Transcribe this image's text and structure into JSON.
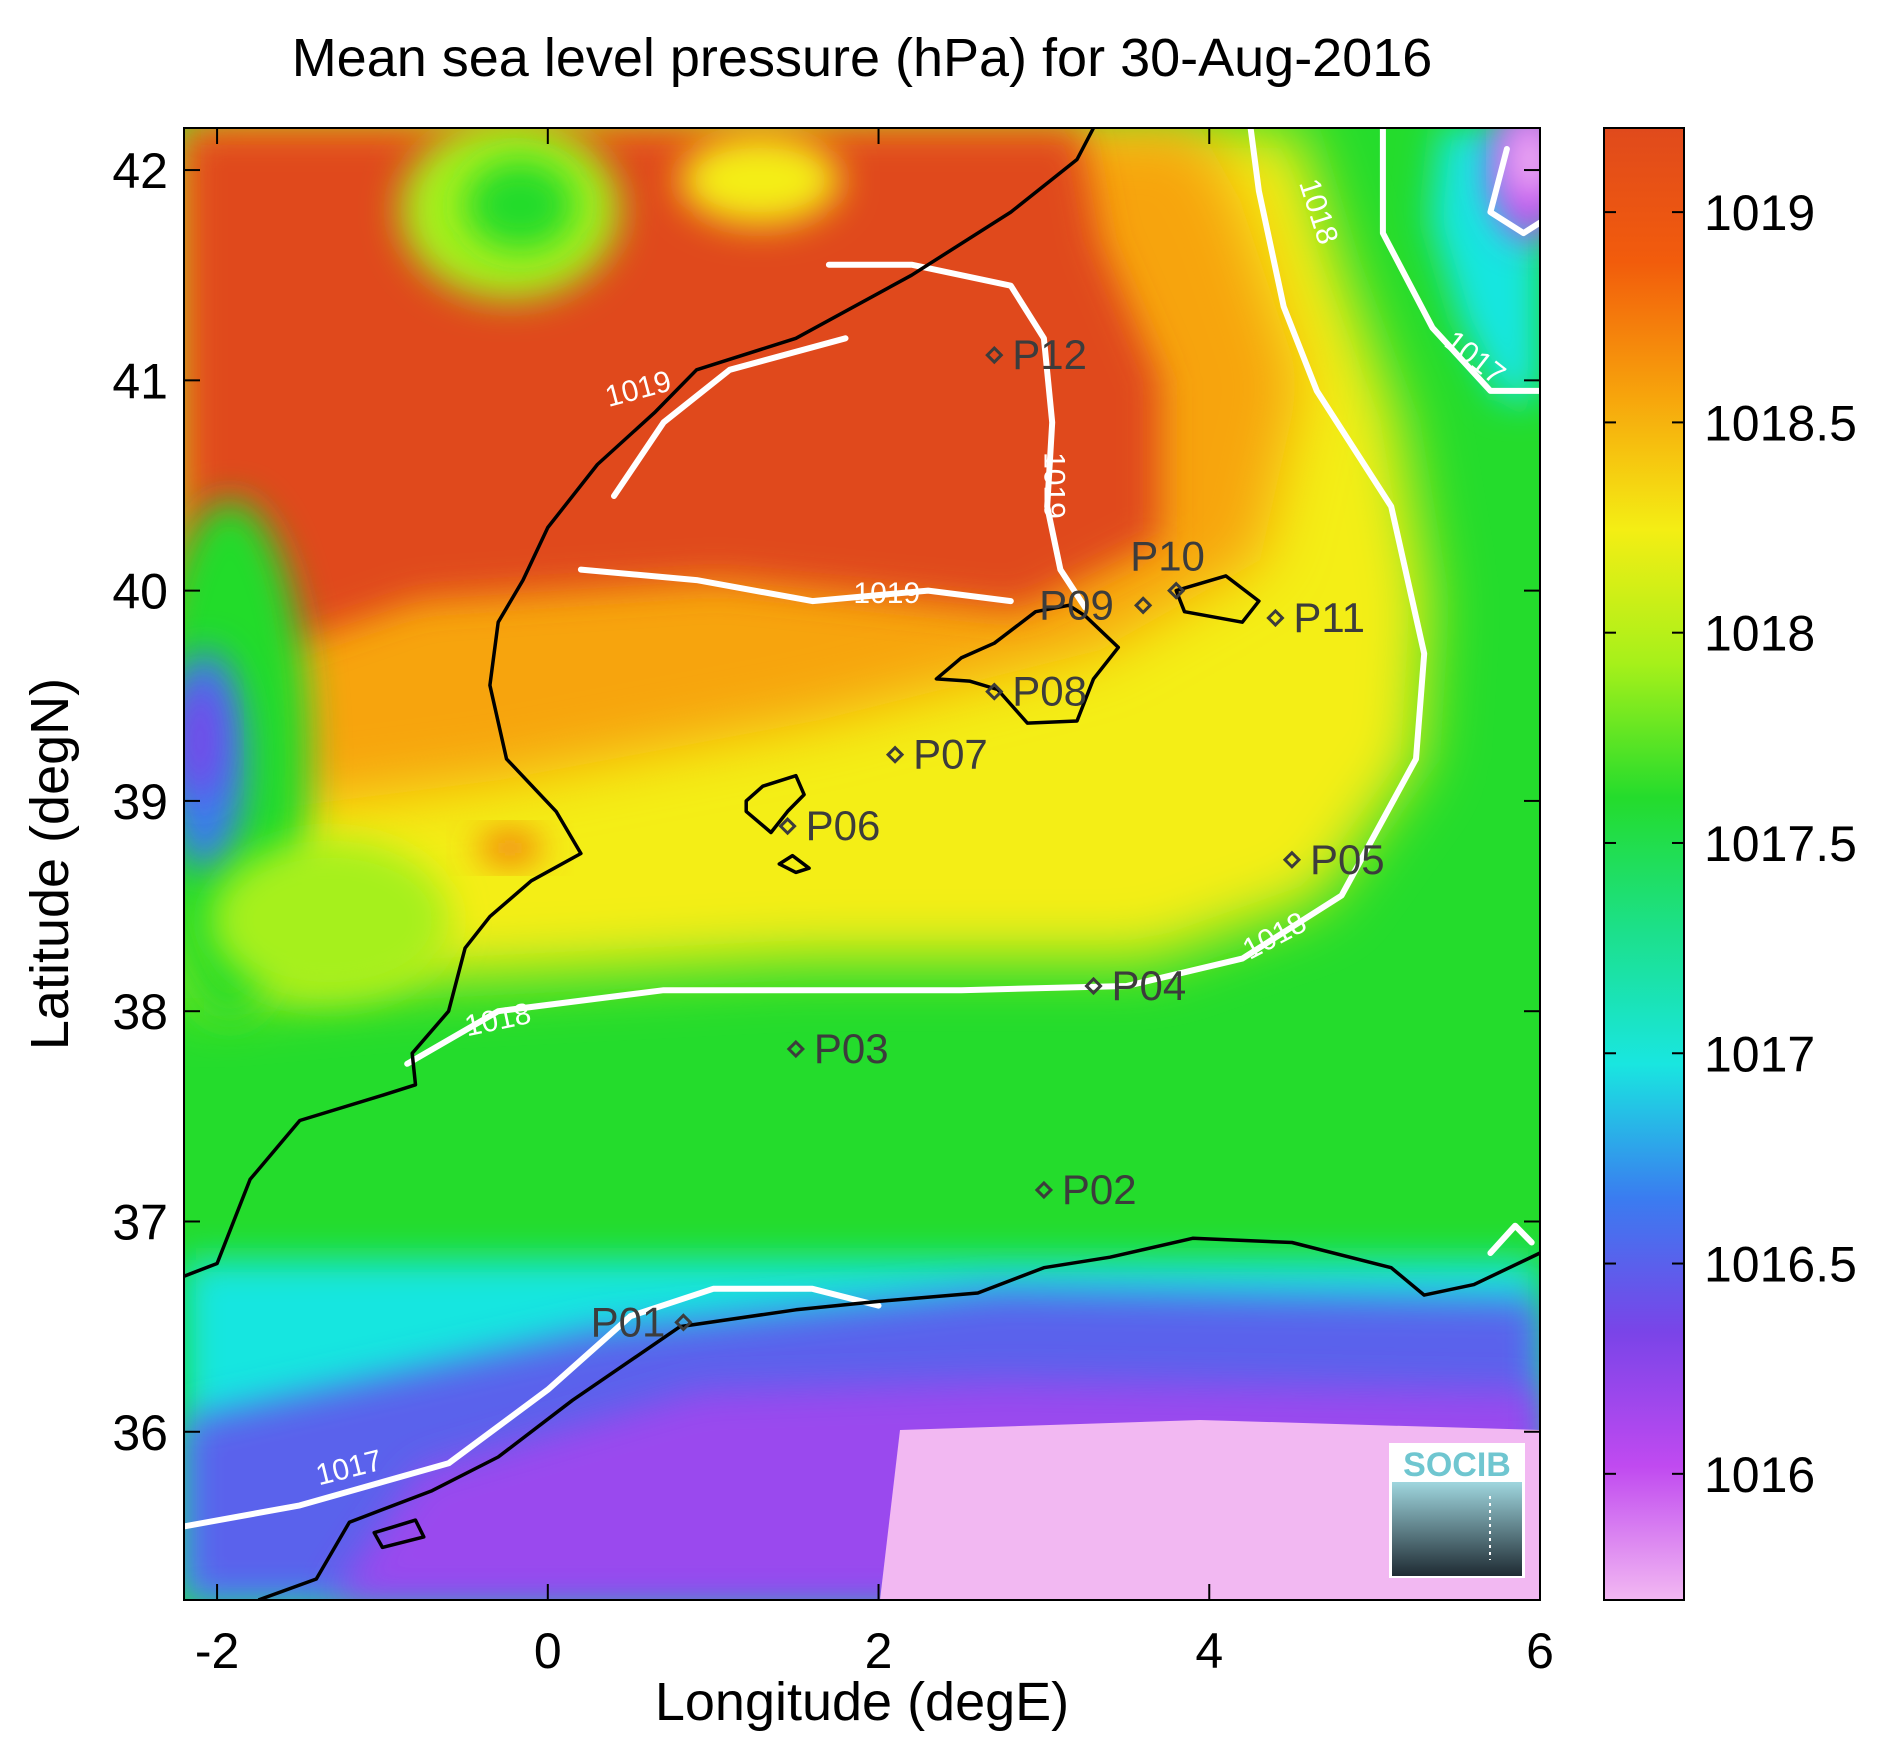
{
  "title": "Mean sea level pressure (hPa) for 30-Aug-2016",
  "xlabel": "Longitude (degE)",
  "ylabel": "Latitude (degN)",
  "logo_text": "SOCIB",
  "colors": {
    "coast": "#000000",
    "contour": "#ffffff",
    "station": "#3c3c3c",
    "colormap": [
      "#f2b8f2",
      "#c04af0",
      "#7a44e8",
      "#3a7cf0",
      "#19e6e0",
      "#1ce08a",
      "#24dc2c",
      "#a6f01a",
      "#f4ee14",
      "#f7a40c",
      "#f25c0c",
      "#e04a1c"
    ]
  },
  "chart_data": {
    "type": "heatmap",
    "xlim": [
      -2.2,
      6
    ],
    "ylim": [
      35.2,
      42.2
    ],
    "x_ticks": [
      -2,
      0,
      2,
      4,
      6
    ],
    "x_tick_labels": [
      "-2",
      "0",
      "2",
      "4",
      "6"
    ],
    "y_ticks": [
      36,
      37,
      38,
      39,
      40,
      41,
      42
    ],
    "y_tick_labels": [
      "36",
      "37",
      "38",
      "39",
      "40",
      "41",
      "42"
    ],
    "colorbar": {
      "range": [
        1015.7,
        1019.2
      ],
      "ticks": [
        1016,
        1016.5,
        1017,
        1017.5,
        1018,
        1018.5,
        1019
      ],
      "tick_labels": [
        "1016",
        "1016.5",
        "1017",
        "1017.5",
        "1018",
        "1018.5",
        "1019"
      ]
    },
    "stations": [
      {
        "name": "P01",
        "lon": 0.82,
        "lat": 36.52
      },
      {
        "name": "P02",
        "lon": 3.0,
        "lat": 37.15
      },
      {
        "name": "P03",
        "lon": 1.5,
        "lat": 37.82
      },
      {
        "name": "P04",
        "lon": 3.3,
        "lat": 38.12
      },
      {
        "name": "P05",
        "lon": 4.5,
        "lat": 38.72
      },
      {
        "name": "P06",
        "lon": 1.45,
        "lat": 38.88
      },
      {
        "name": "P07",
        "lon": 2.1,
        "lat": 39.22
      },
      {
        "name": "P08",
        "lon": 2.7,
        "lat": 39.52
      },
      {
        "name": "P09",
        "lon": 3.6,
        "lat": 39.93
      },
      {
        "name": "P10",
        "lon": 3.8,
        "lat": 40.0
      },
      {
        "name": "P11",
        "lon": 4.4,
        "lat": 39.87
      },
      {
        "name": "P12",
        "lon": 2.7,
        "lat": 41.12
      }
    ],
    "contour_labels": [
      {
        "text": "1019",
        "lon": 0.55,
        "lat": 40.95,
        "angle": -15
      },
      {
        "text": "1019",
        "lon": 2.05,
        "lat": 39.98,
        "angle": 0
      },
      {
        "text": "1019",
        "lon": 3.05,
        "lat": 40.5,
        "angle": 90
      },
      {
        "text": "1018",
        "lon": -0.3,
        "lat": 37.95,
        "angle": -12
      },
      {
        "text": "1018",
        "lon": 4.4,
        "lat": 38.35,
        "angle": -28
      },
      {
        "text": "1018",
        "lon": 4.65,
        "lat": 41.8,
        "angle": 72
      },
      {
        "text": "1017",
        "lon": 5.6,
        "lat": 41.1,
        "angle": 38
      },
      {
        "text": "1017",
        "lon": -1.2,
        "lat": 35.82,
        "angle": -14
      }
    ],
    "coast_mainland": [
      [
        -2.2,
        36.74
      ],
      [
        -2.0,
        36.8
      ],
      [
        -1.8,
        37.2
      ],
      [
        -1.5,
        37.48
      ],
      [
        -1.0,
        37.6
      ],
      [
        -0.8,
        37.65
      ],
      [
        -0.82,
        37.8
      ],
      [
        -0.6,
        38.0
      ],
      [
        -0.5,
        38.3
      ],
      [
        -0.35,
        38.45
      ],
      [
        -0.1,
        38.62
      ],
      [
        0.2,
        38.75
      ],
      [
        0.05,
        38.95
      ],
      [
        -0.25,
        39.2
      ],
      [
        -0.35,
        39.55
      ],
      [
        -0.3,
        39.85
      ],
      [
        -0.15,
        40.05
      ],
      [
        0.0,
        40.3
      ],
      [
        0.3,
        40.6
      ],
      [
        0.65,
        40.85
      ],
      [
        0.9,
        41.05
      ],
      [
        1.5,
        41.2
      ],
      [
        2.2,
        41.5
      ],
      [
        2.8,
        41.8
      ],
      [
        3.2,
        42.05
      ],
      [
        3.3,
        42.2
      ]
    ],
    "coast_africa": [
      [
        -1.75,
        35.2
      ],
      [
        -1.4,
        35.3
      ],
      [
        -1.2,
        35.57
      ],
      [
        -0.7,
        35.72
      ],
      [
        -0.3,
        35.88
      ],
      [
        0.15,
        36.15
      ],
      [
        0.8,
        36.5
      ],
      [
        1.5,
        36.58
      ],
      [
        2.0,
        36.62
      ],
      [
        2.6,
        36.66
      ],
      [
        3.0,
        36.78
      ],
      [
        3.4,
        36.83
      ],
      [
        3.9,
        36.92
      ],
      [
        4.5,
        36.9
      ],
      [
        5.1,
        36.78
      ],
      [
        5.3,
        36.65
      ],
      [
        5.6,
        36.7
      ],
      [
        6.0,
        36.85
      ]
    ],
    "coast_mallorca": [
      [
        2.35,
        39.58
      ],
      [
        2.55,
        39.57
      ],
      [
        2.72,
        39.53
      ],
      [
        2.9,
        39.37
      ],
      [
        3.2,
        39.38
      ],
      [
        3.3,
        39.58
      ],
      [
        3.45,
        39.73
      ],
      [
        3.25,
        39.88
      ],
      [
        3.15,
        39.93
      ],
      [
        2.95,
        39.9
      ],
      [
        2.7,
        39.75
      ],
      [
        2.5,
        39.68
      ]
    ],
    "coast_menorca": [
      [
        3.8,
        40.0
      ],
      [
        4.1,
        40.07
      ],
      [
        4.3,
        39.95
      ],
      [
        4.2,
        39.85
      ],
      [
        3.85,
        39.9
      ]
    ],
    "coast_ibiza": [
      [
        1.2,
        38.95
      ],
      [
        1.35,
        38.85
      ],
      [
        1.45,
        38.95
      ],
      [
        1.55,
        39.03
      ],
      [
        1.5,
        39.12
      ],
      [
        1.3,
        39.07
      ],
      [
        1.2,
        39.0
      ]
    ],
    "coast_formentera": [
      [
        1.4,
        38.7
      ],
      [
        1.5,
        38.66
      ],
      [
        1.58,
        38.68
      ],
      [
        1.48,
        38.74
      ]
    ],
    "coast_alboran": [
      [
        -1.0,
        35.45
      ],
      [
        -0.75,
        35.5
      ],
      [
        -0.8,
        35.58
      ],
      [
        -1.05,
        35.52
      ]
    ],
    "contour_1019": [
      [
        [
          0.4,
          40.45
        ],
        [
          0.7,
          40.8
        ],
        [
          1.1,
          41.05
        ],
        [
          1.8,
          41.2
        ]
      ],
      [
        [
          1.7,
          41.55
        ],
        [
          2.2,
          41.55
        ],
        [
          2.8,
          41.45
        ],
        [
          3.0,
          41.2
        ],
        [
          3.05,
          40.8
        ],
        [
          3.02,
          40.4
        ],
        [
          3.1,
          40.1
        ],
        [
          3.25,
          39.92
        ]
      ],
      [
        [
          0.2,
          40.1
        ],
        [
          0.9,
          40.05
        ],
        [
          1.6,
          39.95
        ],
        [
          2.3,
          40.0
        ],
        [
          2.8,
          39.95
        ]
      ]
    ],
    "contour_1018": [
      [
        [
          -0.85,
          37.75
        ],
        [
          -0.3,
          38.0
        ],
        [
          0.7,
          38.1
        ],
        [
          2.5,
          38.1
        ],
        [
          3.5,
          38.12
        ],
        [
          4.2,
          38.25
        ],
        [
          4.8,
          38.55
        ],
        [
          5.25,
          39.2
        ],
        [
          5.3,
          39.7
        ],
        [
          5.1,
          40.4
        ],
        [
          4.65,
          40.95
        ],
        [
          4.45,
          41.35
        ],
        [
          4.3,
          41.9
        ],
        [
          4.25,
          42.2
        ]
      ]
    ],
    "contour_1017": [
      [
        [
          -2.2,
          35.55
        ],
        [
          -1.5,
          35.65
        ],
        [
          -0.6,
          35.85
        ],
        [
          0.0,
          36.2
        ],
        [
          0.5,
          36.55
        ],
        [
          1.0,
          36.68
        ],
        [
          1.6,
          36.68
        ],
        [
          2.0,
          36.6
        ]
      ],
      [
        [
          5.05,
          42.2
        ],
        [
          5.05,
          41.7
        ],
        [
          5.35,
          41.25
        ],
        [
          5.7,
          40.95
        ],
        [
          6.0,
          40.95
        ]
      ],
      [
        [
          5.8,
          42.1
        ],
        [
          5.7,
          41.8
        ],
        [
          5.9,
          41.7
        ],
        [
          6.0,
          41.75
        ]
      ],
      [
        [
          5.7,
          36.85
        ],
        [
          5.85,
          36.98
        ],
        [
          5.95,
          36.9
        ]
      ]
    ]
  }
}
